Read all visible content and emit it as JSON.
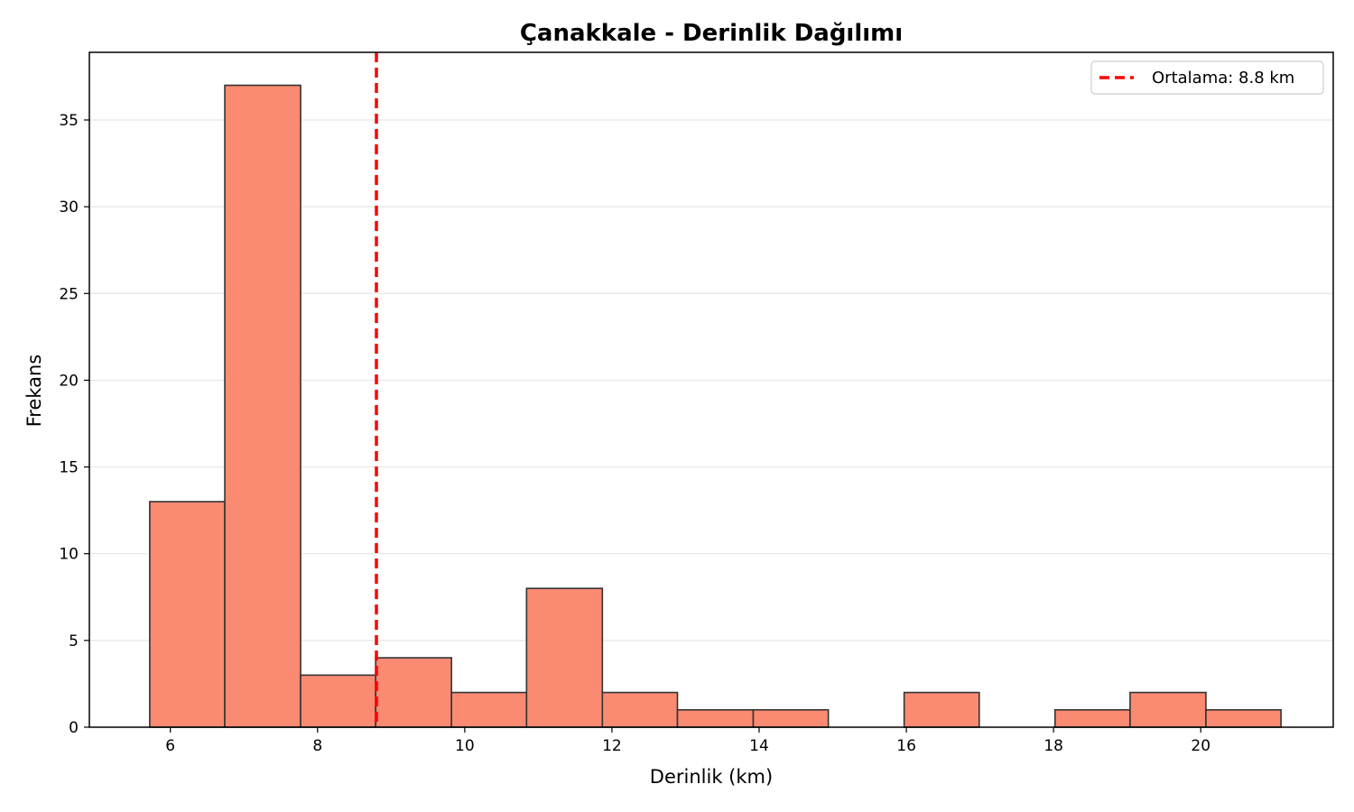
{
  "chart_data": {
    "type": "bar",
    "title": "Çanakkale - Derinlik Dağılımı",
    "xlabel": "Derinlik (km)",
    "ylabel": "Frekans",
    "xlim": [
      4.9,
      21.8
    ],
    "ylim": [
      0,
      38.9
    ],
    "xticks": [
      6,
      8,
      10,
      12,
      14,
      16,
      18,
      20
    ],
    "yticks": [
      0,
      5,
      10,
      15,
      20,
      25,
      30,
      35
    ],
    "bins": [
      {
        "x0": 5.72,
        "x1": 6.74,
        "count": 13
      },
      {
        "x0": 6.74,
        "x1": 7.77,
        "count": 37
      },
      {
        "x0": 7.77,
        "x1": 8.79,
        "count": 3
      },
      {
        "x0": 8.79,
        "x1": 9.82,
        "count": 4
      },
      {
        "x0": 9.82,
        "x1": 10.84,
        "count": 2
      },
      {
        "x0": 10.84,
        "x1": 11.87,
        "count": 8
      },
      {
        "x0": 11.87,
        "x1": 12.89,
        "count": 2
      },
      {
        "x0": 12.89,
        "x1": 13.92,
        "count": 1
      },
      {
        "x0": 13.92,
        "x1": 14.94,
        "count": 1
      },
      {
        "x0": 14.94,
        "x1": 15.97,
        "count": 0
      },
      {
        "x0": 15.97,
        "x1": 16.99,
        "count": 2
      },
      {
        "x0": 16.99,
        "x1": 18.02,
        "count": 0
      },
      {
        "x0": 18.02,
        "x1": 19.04,
        "count": 1
      },
      {
        "x0": 19.04,
        "x1": 20.07,
        "count": 2
      },
      {
        "x0": 20.07,
        "x1": 21.09,
        "count": 1
      }
    ],
    "mean_line": {
      "value": 8.8,
      "label": "Ortalama: 8.8 km",
      "color": "#ff0000"
    },
    "bar_color": "#fa8a72",
    "edge_color": "#333333",
    "grid": "y",
    "legend_position": "top-right"
  }
}
